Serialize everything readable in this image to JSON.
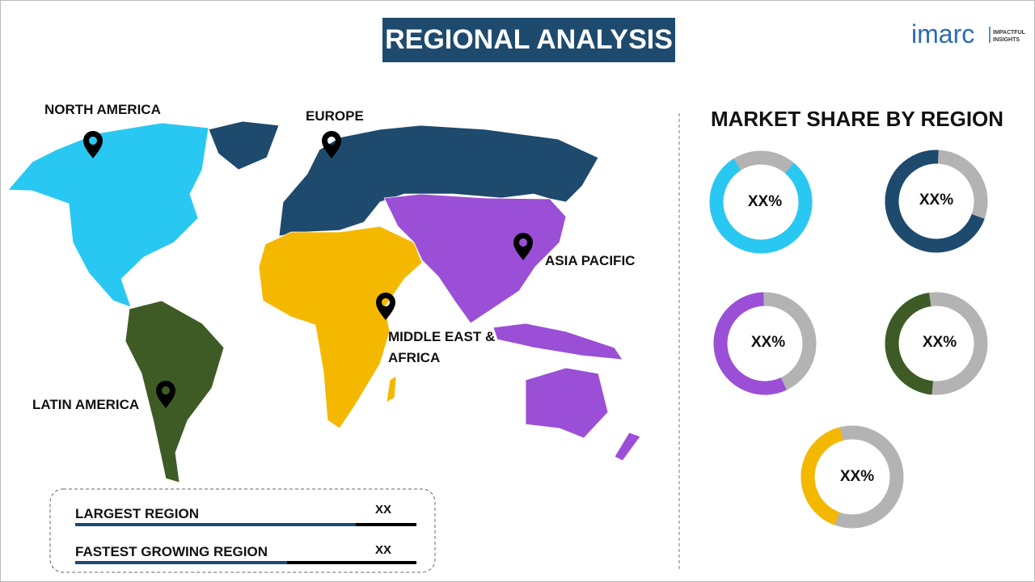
{
  "header": {
    "title": "REGIONAL ANALYSIS",
    "logo": {
      "brand": "imarc",
      "tagline": [
        "IMPACTFUL",
        "INSIGHTS"
      ]
    }
  },
  "map": {
    "labels": [
      "NORTH AMERICA",
      "EUROPE",
      "ASIA PACIFIC",
      "MIDDLE EAST &",
      "AFRICA",
      "LATIN AMERICA"
    ]
  },
  "market_share": {
    "title": "MARKET SHARE BY REGION",
    "donuts": [
      "XX%",
      "XX%",
      "XX%",
      "XX%",
      "XX%"
    ]
  },
  "summary": {
    "rows": [
      {
        "label": "LARGEST REGION",
        "value": "XX"
      },
      {
        "label": "FASTEST GROWING REGION",
        "value": "XX"
      }
    ]
  }
}
